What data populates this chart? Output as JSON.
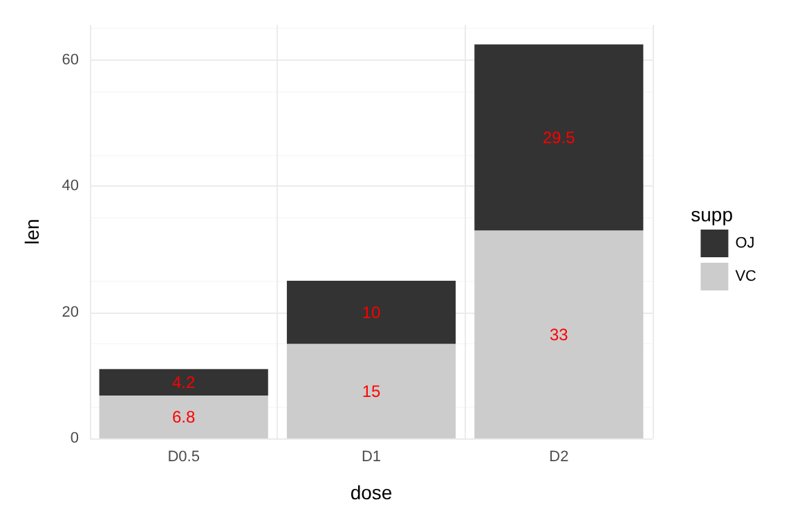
{
  "chart_data": {
    "type": "bar",
    "xlabel": "dose",
    "ylabel": "len",
    "legend_title": "supp",
    "categories": [
      "D0.5",
      "D1",
      "D2"
    ],
    "stacked": true,
    "series": [
      {
        "name": "VC",
        "color": "#cccccc",
        "values": [
          6.8,
          15,
          33
        ]
      },
      {
        "name": "OJ",
        "color": "#333333",
        "values": [
          4.2,
          10,
          29.5
        ]
      }
    ],
    "ylim": [
      0,
      65.6
    ],
    "yticks": [
      0,
      20,
      40,
      60
    ],
    "grid": true,
    "legend": "right",
    "data_labels": true
  }
}
